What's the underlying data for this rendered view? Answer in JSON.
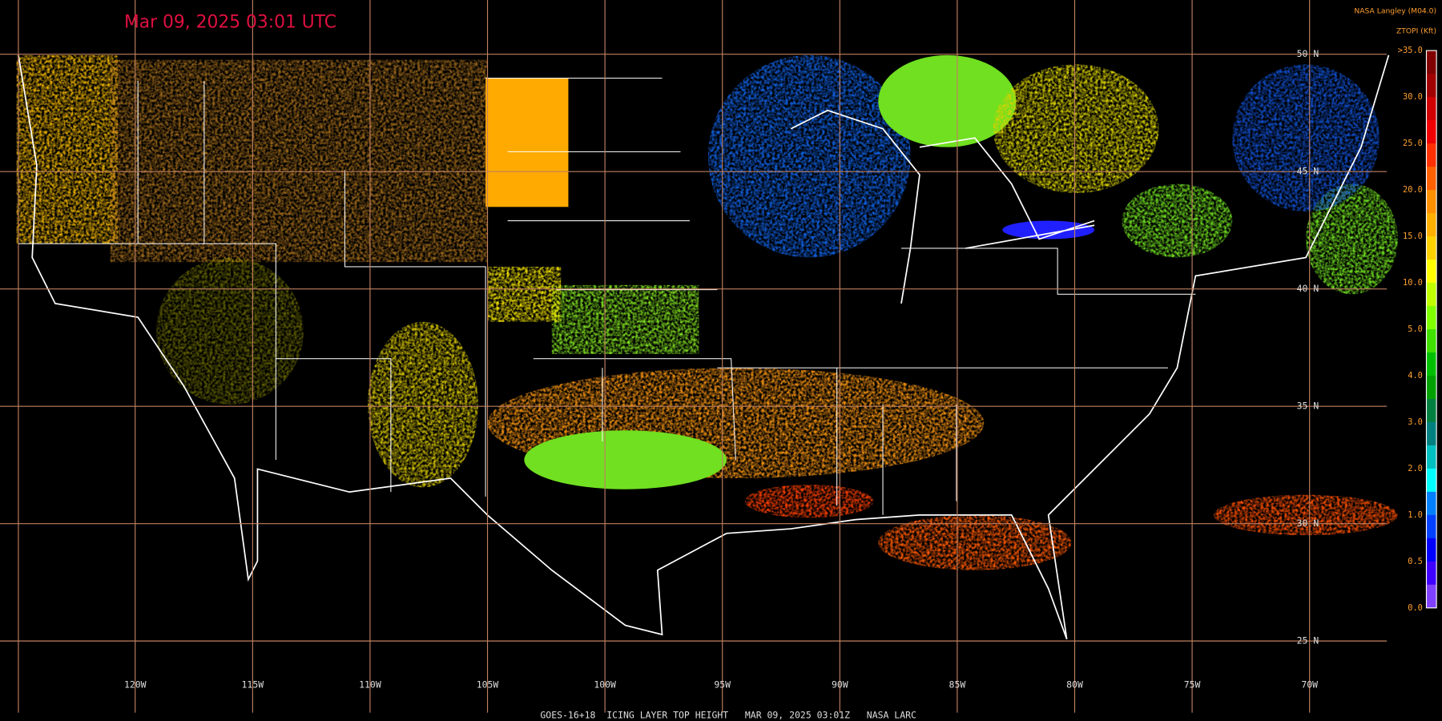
{
  "header": {
    "timestamp": "Mar 09, 2025 03:01 UTC",
    "source": "NASA Langley (M04.0)",
    "product": "ZTOPI (Kft)"
  },
  "legend": {
    "labels": [
      ">35.0",
      "30.0",
      "25.0",
      "20.0",
      "15.0",
      "10.0",
      "5.0",
      "4.0",
      "3.0",
      "2.0",
      "1.0",
      "0.5",
      "0.0"
    ],
    "colors": [
      "#800000",
      "#a00000",
      "#d00000",
      "#f00000",
      "#ff3000",
      "#ff6000",
      "#ff9000",
      "#ffb000",
      "#ffd000",
      "#ffff00",
      "#c0ff00",
      "#80ff00",
      "#40e000",
      "#00c000",
      "#00a000",
      "#008040",
      "#008080",
      "#00c0c0",
      "#00ffff",
      "#0080ff",
      "#0040ff",
      "#0000ff",
      "#4000ff",
      "#8040ff"
    ]
  },
  "grid": {
    "latitudes": [
      "50 N",
      "45 N",
      "40 N",
      "35 N",
      "30 N",
      "25 N"
    ],
    "longitudes": [
      "120W",
      "115W",
      "110W",
      "105W",
      "100W",
      "95W",
      "90W",
      "85W",
      "80W",
      "75W",
      "70W"
    ]
  },
  "footer": "GOES-16+18  ICING LAYER TOP HEIGHT   MAR 09, 2025 03:01Z   NASA LARC"
}
